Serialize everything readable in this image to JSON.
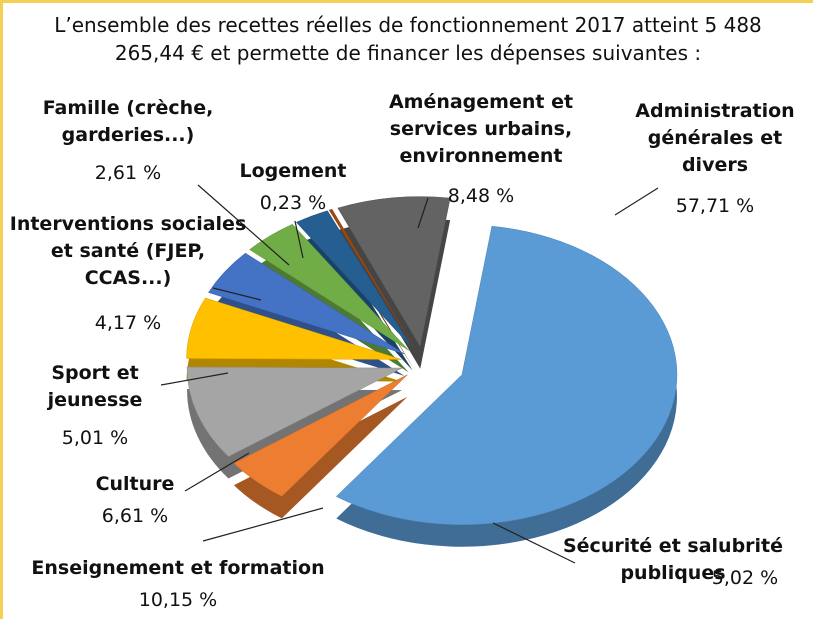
{
  "chart_data": {
    "type": "pie",
    "title": "L’ensemble des recettes réelles de fonctionnement 2017 atteint 5 488 265,44 € et permette de financer les dépenses suivantes :",
    "categories": [
      "Administration générales et divers",
      "Sécurité et salubrité publiques",
      "Enseignement et formation",
      "Culture",
      "Sport et jeunesse",
      "Interventions sociales et santé (FJEP, CCAS...)",
      "Famille (crèche, garderies...)",
      "Logement",
      "Aménagement et services urbains, environnement"
    ],
    "values": [
      57.71,
      5.02,
      10.15,
      6.61,
      5.01,
      4.17,
      2.61,
      0.23,
      8.48
    ],
    "value_labels": [
      "57,71 %",
      "5,02 %",
      "10,15 %",
      "6,61 %",
      "5,01 %",
      "4,17 %",
      "2,61 %",
      "0,23 %",
      "8,48 %"
    ],
    "colors": [
      "#5b9bd5",
      "#ed7d31",
      "#a5a5a5",
      "#ffc000",
      "#4472c4",
      "#70ad47",
      "#255e91",
      "#9e480e",
      "#636363"
    ]
  }
}
